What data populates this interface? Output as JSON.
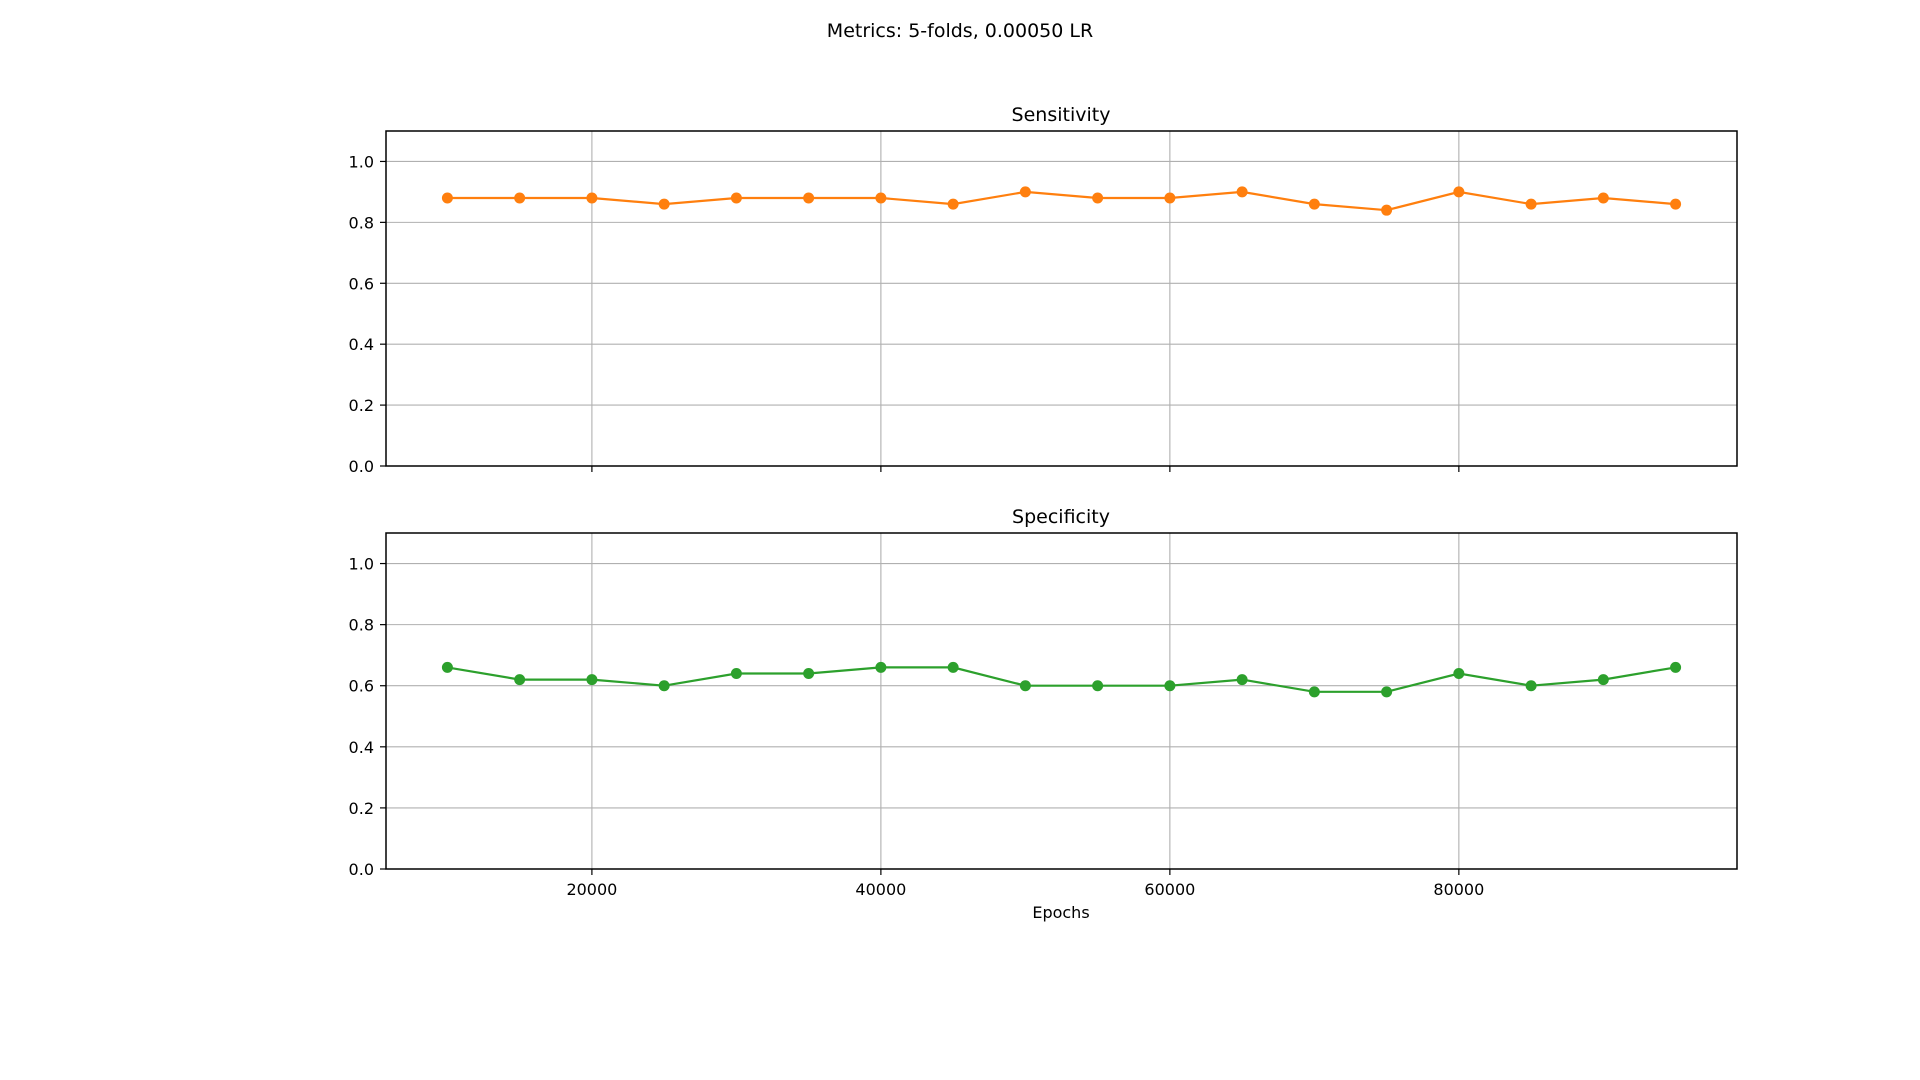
{
  "figure": {
    "suptitle": "Metrics: 5-folds, 0.00050 LR"
  },
  "chart_data": [
    {
      "type": "line",
      "title": "Sensitivity",
      "xlabel": "",
      "ylabel": "",
      "x": [
        10000,
        15000,
        20000,
        25000,
        30000,
        35000,
        40000,
        45000,
        50000,
        55000,
        60000,
        65000,
        70000,
        75000,
        80000,
        85000,
        90000,
        95000
      ],
      "series": [
        {
          "values": [
            0.88,
            0.88,
            0.88,
            0.86,
            0.88,
            0.88,
            0.88,
            0.86,
            0.9,
            0.88,
            0.88,
            0.9,
            0.86,
            0.84,
            0.9,
            0.86,
            0.88,
            0.86
          ],
          "color": "#ff7f0e",
          "marker": "circle"
        }
      ],
      "xlim": [
        5750,
        99250
      ],
      "ylim": [
        0,
        1.1
      ],
      "xticks": [
        20000,
        40000,
        60000,
        80000
      ],
      "xtick_labels_visible": false,
      "yticks": [
        "0.0",
        "0.2",
        "0.4",
        "0.6",
        "0.8",
        "1.0"
      ],
      "grid": true
    },
    {
      "type": "line",
      "title": "Specificity",
      "xlabel": "Epochs",
      "ylabel": "",
      "x": [
        10000,
        15000,
        20000,
        25000,
        30000,
        35000,
        40000,
        45000,
        50000,
        55000,
        60000,
        65000,
        70000,
        75000,
        80000,
        85000,
        90000,
        95000
      ],
      "series": [
        {
          "values": [
            0.66,
            0.62,
            0.62,
            0.6,
            0.64,
            0.64,
            0.66,
            0.66,
            0.6,
            0.6,
            0.6,
            0.62,
            0.58,
            0.58,
            0.64,
            0.6,
            0.62,
            0.66
          ],
          "color": "#2ca02c",
          "marker": "circle"
        }
      ],
      "xlim": [
        5750,
        99250
      ],
      "ylim": [
        0,
        1.1
      ],
      "xticks": [
        "20000",
        "40000",
        "60000",
        "80000"
      ],
      "xtick_labels_visible": true,
      "yticks": [
        "0.0",
        "0.2",
        "0.4",
        "0.6",
        "0.8",
        "1.0"
      ],
      "grid": true
    }
  ]
}
